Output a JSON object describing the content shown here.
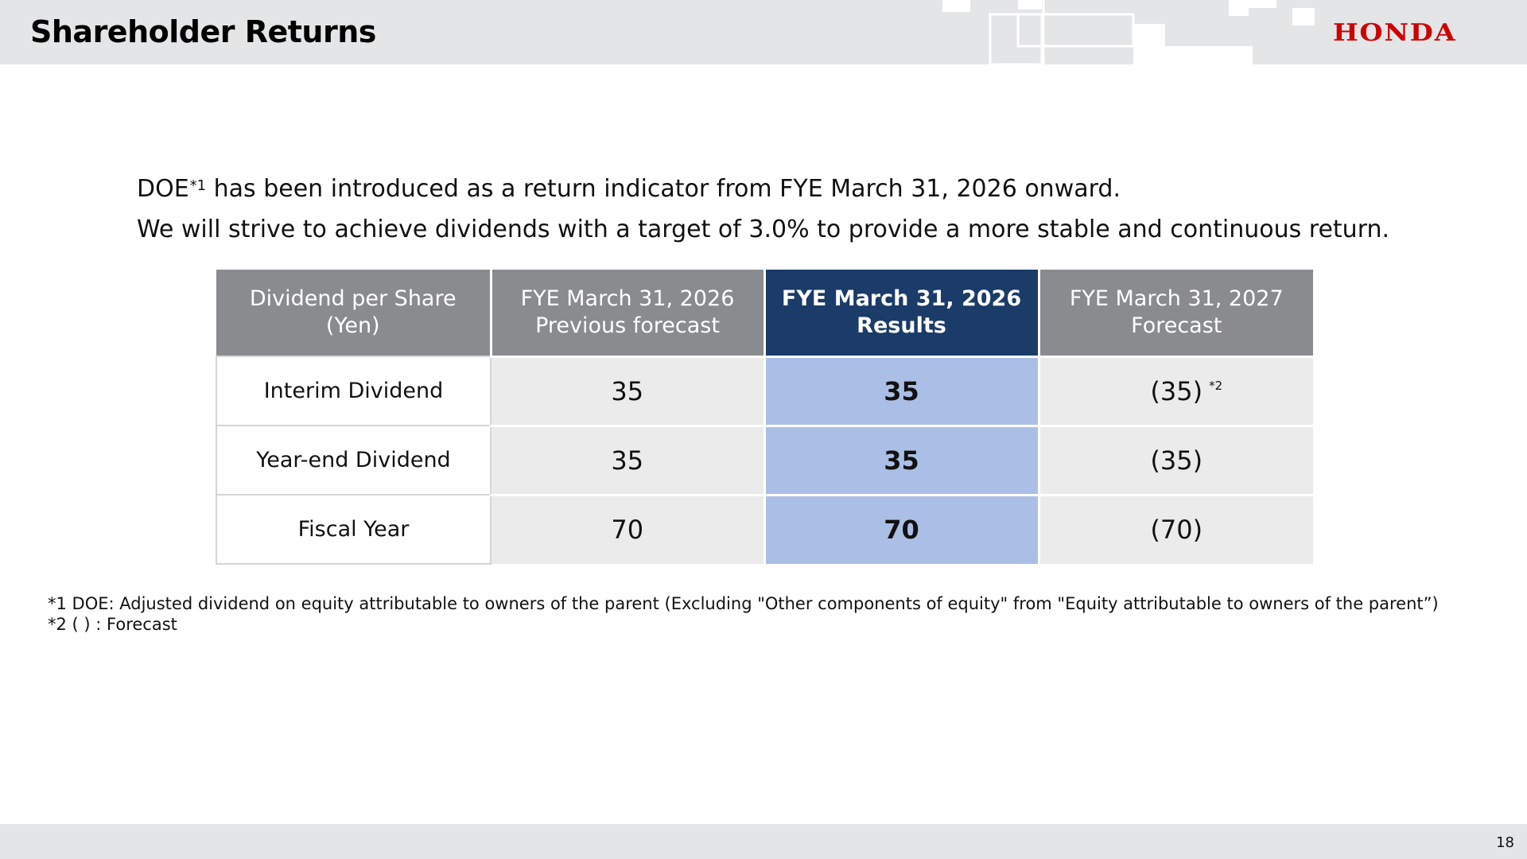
{
  "header": {
    "title": "Shareholder Returns",
    "logo_text": "HONDA",
    "logo_color": "#cc0000"
  },
  "lead": {
    "line1_pre": "DOE",
    "line1_sup": "*1",
    "line1_post": " has been introduced as a return indicator from FYE March 31, 2026 onward.",
    "line2": "We will strive to achieve dividends with a target of 3.0% to provide a more stable and continuous return."
  },
  "table": {
    "headers": [
      {
        "line1": "Dividend per Share",
        "line2": "(Yen)"
      },
      {
        "line1": "FYE March 31, 2026",
        "line2": "Previous forecast"
      },
      {
        "line1": "FYE March 31, 2026",
        "line2": "Results"
      },
      {
        "line1": "FYE March 31, 2027",
        "line2": "Forecast"
      }
    ],
    "rows": [
      {
        "label": "Interim Dividend",
        "previous": "35",
        "results": "35",
        "forecast": "(35)",
        "forecast_note": "*2"
      },
      {
        "label": "Year-end Dividend",
        "previous": "35",
        "results": "35",
        "forecast": "(35)"
      },
      {
        "label": "Fiscal Year",
        "previous": "70",
        "results": "70",
        "forecast": "(70)"
      }
    ],
    "colors": {
      "header_gray": "#8a8b8f",
      "header_highlight": "#1b3b69",
      "cell_gray": "#ebebeb",
      "cell_highlight": "#abbfe6"
    }
  },
  "notes": {
    "note1": "*1 DOE: Adjusted dividend on equity attributable to owners of the parent (Excluding \"Other components of equity\" from \"Equity attributable to owners of the parent”)",
    "note2": "*2 ( ) : Forecast"
  },
  "footer": {
    "page_number": "18"
  }
}
